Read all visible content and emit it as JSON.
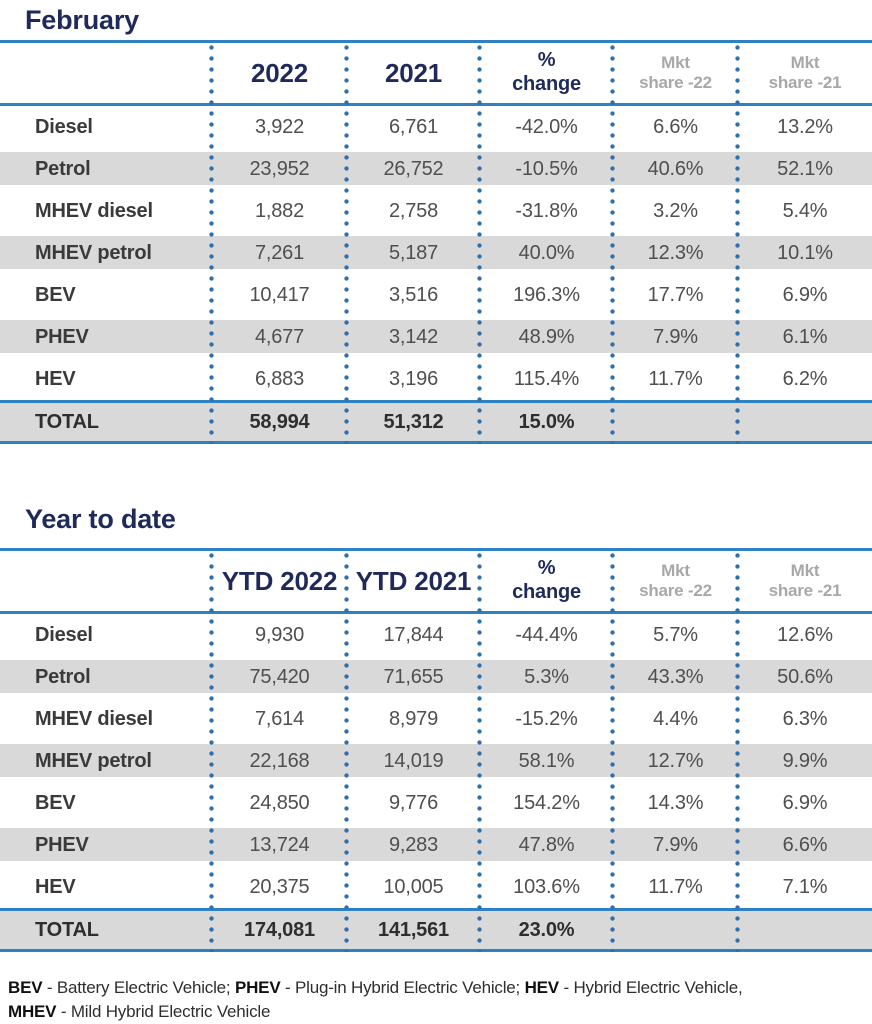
{
  "colors": {
    "navy": "#1f2a5a",
    "line_blue": "#2e82c4",
    "dot_blue": "#2e6fae",
    "row_stripe_gray": "#d9d9d9",
    "muted_header_gray": "#a8a8a8"
  },
  "february": {
    "title": "February",
    "header": {
      "col_2022": "2022",
      "col_2021": "2021",
      "pct_line1": "%",
      "pct_line2": "change",
      "mkt22_line1": "Mkt",
      "mkt22_line2": "share -22",
      "mkt21_line1": "Mkt",
      "mkt21_line2": "share -21"
    },
    "rows": [
      {
        "label": "Diesel",
        "y1": "3,922",
        "y2": "6,761",
        "chg": "-42.0%",
        "m22": "6.6%",
        "m21": "13.2%"
      },
      {
        "label": "Petrol",
        "y1": "23,952",
        "y2": "26,752",
        "chg": "-10.5%",
        "m22": "40.6%",
        "m21": "52.1%"
      },
      {
        "label": "MHEV diesel",
        "y1": "1,882",
        "y2": "2,758",
        "chg": "-31.8%",
        "m22": "3.2%",
        "m21": "5.4%"
      },
      {
        "label": "MHEV petrol",
        "y1": "7,261",
        "y2": "5,187",
        "chg": "40.0%",
        "m22": "12.3%",
        "m21": "10.1%"
      },
      {
        "label": "BEV",
        "y1": "10,417",
        "y2": "3,516",
        "chg": "196.3%",
        "m22": "17.7%",
        "m21": "6.9%"
      },
      {
        "label": "PHEV",
        "y1": "4,677",
        "y2": "3,142",
        "chg": "48.9%",
        "m22": "7.9%",
        "m21": "6.1%"
      },
      {
        "label": "HEV",
        "y1": "6,883",
        "y2": "3,196",
        "chg": "115.4%",
        "m22": "11.7%",
        "m21": "6.2%"
      }
    ],
    "total": {
      "label": "TOTAL",
      "y1": "58,994",
      "y2": "51,312",
      "chg": "15.0%",
      "m22": "",
      "m21": ""
    }
  },
  "ytd": {
    "title": "Year to date",
    "header": {
      "col_2022": "YTD 2022",
      "col_2021": "YTD 2021",
      "pct_line1": "%",
      "pct_line2": "change",
      "mkt22_line1": "Mkt",
      "mkt22_line2": "share -22",
      "mkt21_line1": "Mkt",
      "mkt21_line2": "share -21"
    },
    "rows": [
      {
        "label": "Diesel",
        "y1": "9,930",
        "y2": "17,844",
        "chg": "-44.4%",
        "m22": "5.7%",
        "m21": "12.6%"
      },
      {
        "label": "Petrol",
        "y1": "75,420",
        "y2": "71,655",
        "chg": "5.3%",
        "m22": "43.3%",
        "m21": "50.6%"
      },
      {
        "label": "MHEV diesel",
        "y1": "7,614",
        "y2": "8,979",
        "chg": "-15.2%",
        "m22": "4.4%",
        "m21": "6.3%"
      },
      {
        "label": "MHEV petrol",
        "y1": "22,168",
        "y2": "14,019",
        "chg": "58.1%",
        "m22": "12.7%",
        "m21": "9.9%"
      },
      {
        "label": "BEV",
        "y1": "24,850",
        "y2": "9,776",
        "chg": "154.2%",
        "m22": "14.3%",
        "m21": "6.9%"
      },
      {
        "label": "PHEV",
        "y1": "13,724",
        "y2": "9,283",
        "chg": "47.8%",
        "m22": "7.9%",
        "m21": "6.6%"
      },
      {
        "label": "HEV",
        "y1": "20,375",
        "y2": "10,005",
        "chg": "103.6%",
        "m22": "11.7%",
        "m21": "7.1%"
      }
    ],
    "total": {
      "label": "TOTAL",
      "y1": "174,081",
      "y2": "141,561",
      "chg": "23.0%",
      "m22": "",
      "m21": ""
    }
  },
  "footnote": {
    "bev_abbr": "BEV",
    "bev_text": " - Battery Electric Vehicle; ",
    "phev_abbr": "PHEV",
    "phev_text": " - Plug-in Hybrid Electric Vehicle; ",
    "hev_abbr": "HEV",
    "hev_text": " - Hybrid Electric Vehicle,",
    "mhev_abbr": "MHEV",
    "mhev_text": " - Mild Hybrid Electric Vehicle"
  },
  "chart_data": [
    {
      "type": "table",
      "title": "February",
      "columns": [
        "",
        "2022",
        "2021",
        "% change",
        "Mkt share -22",
        "Mkt share -21"
      ],
      "rows": [
        [
          "Diesel",
          "3,922",
          "6,761",
          "-42.0%",
          "6.6%",
          "13.2%"
        ],
        [
          "Petrol",
          "23,952",
          "26,752",
          "-10.5%",
          "40.6%",
          "52.1%"
        ],
        [
          "MHEV diesel",
          "1,882",
          "2,758",
          "-31.8%",
          "3.2%",
          "5.4%"
        ],
        [
          "MHEV petrol",
          "7,261",
          "5,187",
          "40.0%",
          "12.3%",
          "10.1%"
        ],
        [
          "BEV",
          "10,417",
          "3,516",
          "196.3%",
          "17.7%",
          "6.9%"
        ],
        [
          "PHEV",
          "4,677",
          "3,142",
          "48.9%",
          "7.9%",
          "6.1%"
        ],
        [
          "HEV",
          "6,883",
          "3,196",
          "115.4%",
          "11.7%",
          "6.2%"
        ],
        [
          "TOTAL",
          "58,994",
          "51,312",
          "15.0%",
          "",
          ""
        ]
      ]
    },
    {
      "type": "table",
      "title": "Year to date",
      "columns": [
        "",
        "YTD 2022",
        "YTD 2021",
        "% change",
        "Mkt share -22",
        "Mkt share -21"
      ],
      "rows": [
        [
          "Diesel",
          "9,930",
          "17,844",
          "-44.4%",
          "5.7%",
          "12.6%"
        ],
        [
          "Petrol",
          "75,420",
          "71,655",
          "5.3%",
          "43.3%",
          "50.6%"
        ],
        [
          "MHEV diesel",
          "7,614",
          "8,979",
          "-15.2%",
          "4.4%",
          "6.3%"
        ],
        [
          "MHEV petrol",
          "22,168",
          "14,019",
          "58.1%",
          "12.7%",
          "9.9%"
        ],
        [
          "BEV",
          "24,850",
          "9,776",
          "154.2%",
          "14.3%",
          "6.9%"
        ],
        [
          "PHEV",
          "13,724",
          "9,283",
          "47.8%",
          "7.9%",
          "6.6%"
        ],
        [
          "HEV",
          "20,375",
          "10,005",
          "103.6%",
          "11.7%",
          "7.1%"
        ],
        [
          "TOTAL",
          "174,081",
          "141,561",
          "23.0%",
          "",
          ""
        ]
      ]
    }
  ]
}
